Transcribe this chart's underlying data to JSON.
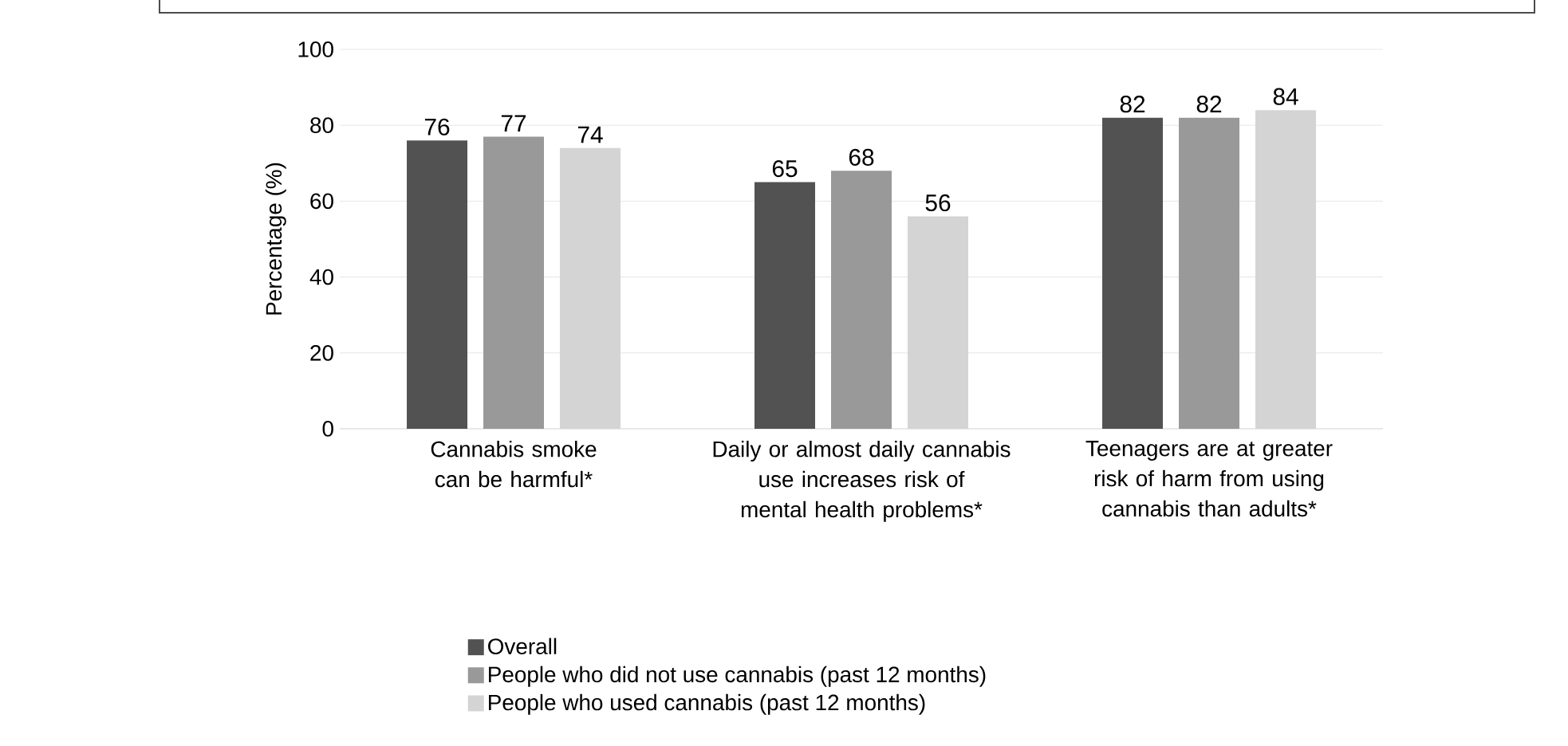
{
  "chart_data": {
    "type": "bar",
    "ylabel": "Percentage (%)",
    "categories": [
      "Cannabis smoke can be harmful*",
      "Daily or almost daily cannabis use increases risk of mental health problems*",
      "Teenagers are at greater risk of harm from using cannabis than adults*"
    ],
    "series": [
      {
        "name": "Overall",
        "color": "#525252",
        "values": [
          76,
          65,
          82
        ]
      },
      {
        "name": "People who did not use cannabis (past 12 months)",
        "color": "#999999",
        "values": [
          77,
          68,
          82
        ]
      },
      {
        "name": "People who used cannabis (past 12 months)",
        "color": "#d4d4d4",
        "values": [
          74,
          56,
          84
        ]
      }
    ],
    "ylim": [
      0,
      100
    ],
    "yticks": [
      0,
      20,
      40,
      60,
      80,
      100
    ],
    "grid": "y",
    "legend": "bottom",
    "data_labels": true
  }
}
